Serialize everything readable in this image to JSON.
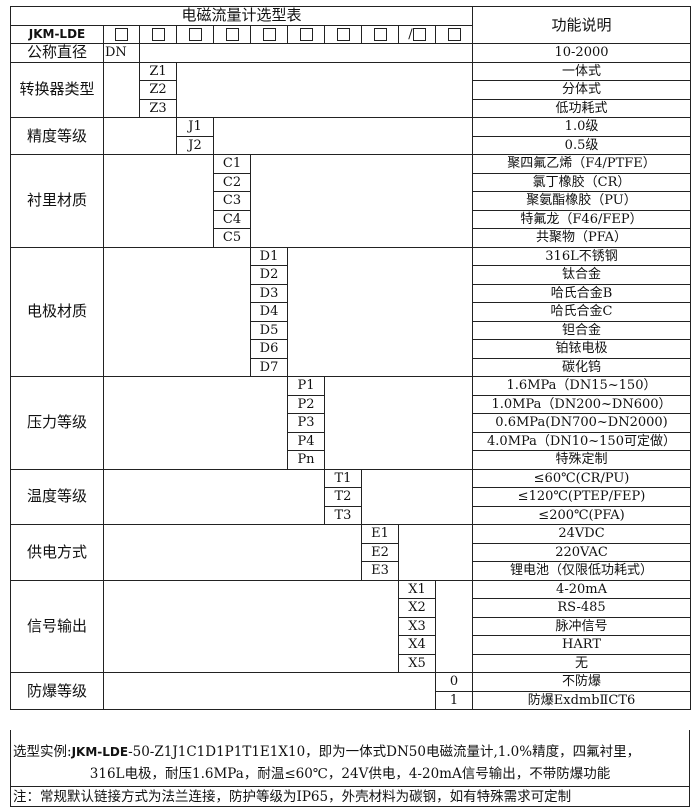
{
  "table": {
    "title": "电磁流量计选型表",
    "function_header": "功能说明",
    "model_prefix": "JKM-LDE",
    "code_boxes": [
      "",
      "",
      "",
      "",
      "",
      "",
      "",
      "",
      "/",
      ""
    ],
    "nominal_diameter": {
      "label": "公称直径",
      "code": "DN",
      "function": "10-2000"
    },
    "groups": [
      {
        "label": "转换器类型",
        "items": [
          {
            "code": "Z1",
            "function": "一体式"
          },
          {
            "code": "Z2",
            "function": "分体式"
          },
          {
            "code": "Z3",
            "function": "低功耗式"
          }
        ]
      },
      {
        "label": "精度等级",
        "items": [
          {
            "code": "J1",
            "function": "1.0级"
          },
          {
            "code": "J2",
            "function": "0.5级"
          }
        ]
      },
      {
        "label": "衬里材质",
        "items": [
          {
            "code": "C1",
            "function": "聚四氟乙烯（F4/PTFE）"
          },
          {
            "code": "C2",
            "function": "氯丁橡胶（CR）"
          },
          {
            "code": "C3",
            "function": "聚氨酯橡胶（PU）"
          },
          {
            "code": "C4",
            "function": "特氟龙（F46/FEP）"
          },
          {
            "code": "C5",
            "function": "共聚物（PFA）"
          }
        ]
      },
      {
        "label": "电极材质",
        "items": [
          {
            "code": "D1",
            "function": "316L不锈钢"
          },
          {
            "code": "D2",
            "function": "钛合金"
          },
          {
            "code": "D3",
            "function": "哈氏合金B"
          },
          {
            "code": "D4",
            "function": "哈氏合金C"
          },
          {
            "code": "D5",
            "function": "钽合金"
          },
          {
            "code": "D6",
            "function": "铂铱电极"
          },
          {
            "code": "D7",
            "function": "碳化钨"
          }
        ]
      },
      {
        "label": "压力等级",
        "items": [
          {
            "code": "P1",
            "function": "1.6MPa（DN15~150）"
          },
          {
            "code": "P2",
            "function": "1.0MPa（DN200~DN600）"
          },
          {
            "code": "P3",
            "function": "0.6MPa(DN700~DN2000)"
          },
          {
            "code": "P4",
            "function": "4.0MPa（DN10~150可定做）"
          },
          {
            "code": "Pn",
            "function": "特殊定制"
          }
        ]
      },
      {
        "label": "温度等级",
        "items": [
          {
            "code": "T1",
            "function": "≤60℃(CR/PU)"
          },
          {
            "code": "T2",
            "function": "≤120℃(PTEP/FEP)"
          },
          {
            "code": "T3",
            "function": "≤200℃(PFA)"
          }
        ]
      },
      {
        "label": "供电方式",
        "items": [
          {
            "code": "E1",
            "function": "24VDC"
          },
          {
            "code": "E2",
            "function": "220VAC"
          },
          {
            "code": "E3",
            "function": "锂电池（仅限低功耗式）"
          }
        ]
      },
      {
        "label": "信号输出",
        "items": [
          {
            "code": "X1",
            "function": "4-20mA"
          },
          {
            "code": "X2",
            "function": "RS-485"
          },
          {
            "code": "X3",
            "function": "脉冲信号"
          },
          {
            "code": "X4",
            "function": "HART"
          },
          {
            "code": "X5",
            "function": "无"
          }
        ]
      },
      {
        "label": "防爆等级",
        "items": [
          {
            "code": "0",
            "function": "不防爆"
          },
          {
            "code": "1",
            "function": "防爆ExdmbⅡCT6"
          }
        ]
      }
    ]
  },
  "example": {
    "label": "选型实例:",
    "code_prefix": "JKM-LDE",
    "code_rest": "-50-Z1J1C1D1P1T1E1X10，即为一体式DN50电磁流量计,1.0%精度，四氟衬里，",
    "line2": "316L电极，耐压1.6MPa，耐温≤60℃，24V供电，4-20mA信号输出，不带防爆功能"
  },
  "note": "注：常规默认链接方式为法兰连接，防护等级为IP65，外壳材料为碳钢，如有特殊需求可定制"
}
